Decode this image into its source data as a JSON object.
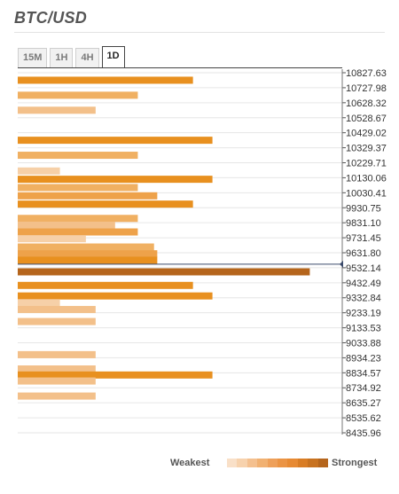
{
  "header": {
    "title": "BTC/USD"
  },
  "tabs": [
    {
      "label": "15M",
      "active": false
    },
    {
      "label": "1H",
      "active": false
    },
    {
      "label": "4H",
      "active": false
    },
    {
      "label": "1D",
      "active": true
    }
  ],
  "legend": {
    "weakest_label": "Weakest",
    "strongest_label": "Strongest",
    "colors": [
      "#f9e0c8",
      "#f7d2ad",
      "#f4c08f",
      "#f1b172",
      "#eea05a",
      "#eb9444",
      "#e78a33",
      "#d97d25",
      "#c87220",
      "#b5651c"
    ]
  },
  "chart_data": {
    "type": "bar",
    "orientation": "horizontal",
    "title": "BTC/USD",
    "current_price": 9532.14,
    "ylim": [
      8435.96,
      10827.63
    ],
    "xlim": [
      0,
      10
    ],
    "y_ticks": [
      "10827.63",
      "10727.98",
      "10628.32",
      "10528.67",
      "10429.02",
      "10329.37",
      "10229.71",
      "10130.06",
      "10030.41",
      "9930.75",
      "9831.10",
      "9731.45",
      "9631.80",
      "9532.14",
      "9432.49",
      "9332.84",
      "9233.19",
      "9133.53",
      "9033.88",
      "8934.23",
      "8834.57",
      "8734.92",
      "8635.27",
      "8535.62",
      "8435.96"
    ],
    "bars": [
      {
        "price": 10777.8,
        "strength": 5.4,
        "color": "#e8901f"
      },
      {
        "price": 10678.2,
        "strength": 3.7,
        "color": "#f0b062"
      },
      {
        "price": 10578.5,
        "strength": 2.4,
        "color": "#f3c08a"
      },
      {
        "price": 10379.2,
        "strength": 6.0,
        "color": "#e8901f"
      },
      {
        "price": 10279.5,
        "strength": 3.7,
        "color": "#f0b062"
      },
      {
        "price": 10175.0,
        "strength": 1.3,
        "color": "#f6d0a8"
      },
      {
        "price": 10120.0,
        "strength": 6.0,
        "color": "#e8901f"
      },
      {
        "price": 10065.0,
        "strength": 3.7,
        "color": "#f0b062"
      },
      {
        "price": 10010.0,
        "strength": 4.3,
        "color": "#eea24a"
      },
      {
        "price": 9955.0,
        "strength": 5.4,
        "color": "#e8901f"
      },
      {
        "price": 9860.0,
        "strength": 3.7,
        "color": "#f0b062"
      },
      {
        "price": 9815.0,
        "strength": 3.0,
        "color": "#f3c08a"
      },
      {
        "price": 9770.0,
        "strength": 3.7,
        "color": "#eea24a"
      },
      {
        "price": 9725.0,
        "strength": 2.1,
        "color": "#f6d0a8"
      },
      {
        "price": 9670.0,
        "strength": 4.2,
        "color": "#f0b062"
      },
      {
        "price": 9625.0,
        "strength": 4.3,
        "color": "#eea24a"
      },
      {
        "price": 9582.0,
        "strength": 4.3,
        "color": "#e8901f"
      },
      {
        "price": 9505.0,
        "strength": 9.0,
        "color": "#b5651c"
      },
      {
        "price": 9415.0,
        "strength": 5.4,
        "color": "#e8901f"
      },
      {
        "price": 9345.0,
        "strength": 6.0,
        "color": "#e8901f"
      },
      {
        "price": 9300.0,
        "strength": 1.3,
        "color": "#f6d0a8"
      },
      {
        "price": 9255.0,
        "strength": 2.4,
        "color": "#f3c08a"
      },
      {
        "price": 9175.0,
        "strength": 2.4,
        "color": "#f3c08a"
      },
      {
        "price": 8955.0,
        "strength": 2.4,
        "color": "#f3c08a"
      },
      {
        "price": 8860.0,
        "strength": 2.4,
        "color": "#f3c08a"
      },
      {
        "price": 8820.0,
        "strength": 6.0,
        "color": "#e8901f"
      },
      {
        "price": 8780.0,
        "strength": 2.4,
        "color": "#f3c08a"
      },
      {
        "price": 8680.0,
        "strength": 2.4,
        "color": "#f3c08a"
      }
    ]
  }
}
